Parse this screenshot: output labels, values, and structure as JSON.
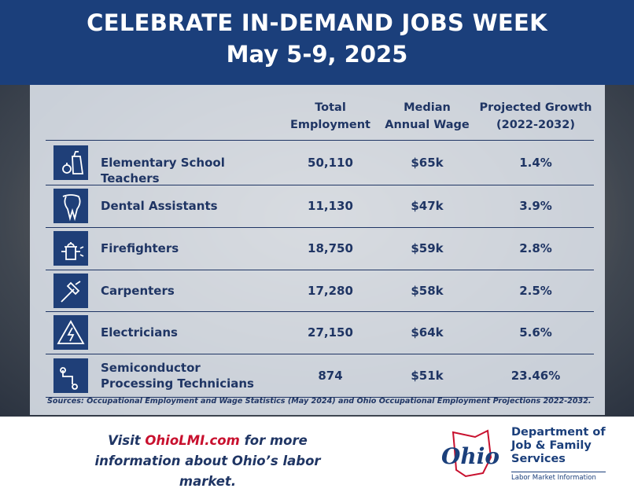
{
  "header": {
    "title": "CELEBRATE IN-DEMAND JOBS WEEK",
    "subtitle": "May 5-9, 2025"
  },
  "table": {
    "columns": [
      "Total Employment",
      "Median Annual Wage",
      "Projected Growth (2022-2032)"
    ],
    "rows": [
      [
        "Elementary School Teachers",
        "50,110",
        "$65k",
        "1.4%"
      ],
      [
        "Dental Assistants",
        "11,130",
        "$47k",
        "3.9%"
      ],
      [
        "Firefighters",
        "18,750",
        "$59k",
        "2.8%"
      ],
      [
        "Carpenters",
        "17,280",
        "$58k",
        "2.5%"
      ],
      [
        "Electricians",
        "27,150",
        "$64k",
        "5.6%"
      ],
      [
        "Semiconductor Processing Technicians",
        "874",
        "$51k",
        "23.46%"
      ]
    ],
    "sources": "Sources: Occupational Employment and Wage Statistics (May 2024) and Ohio Occupational Employment Projections 2022-2032."
  },
  "footer": {
    "cta_start": "Visit",
    "link": "OhioLMI.com",
    "cta_end": "for more information about Ohio’s labor market.",
    "logo_text": "Ohio",
    "department": "Department of Job & Family Services",
    "division": "Labor Market Information"
  }
}
